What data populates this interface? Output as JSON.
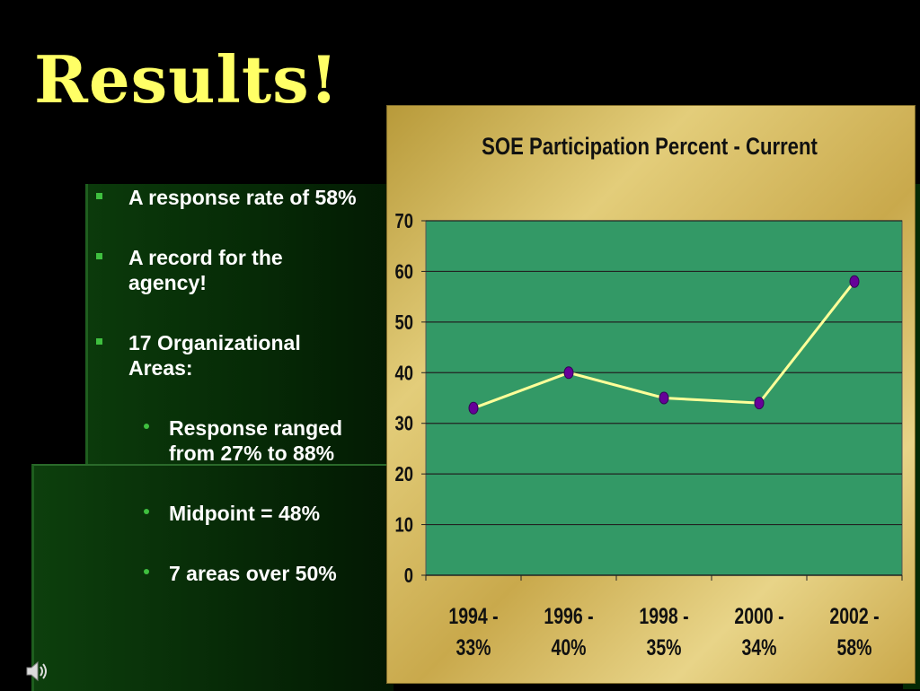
{
  "slide": {
    "title": "Results!",
    "bullets": [
      {
        "level": 1,
        "text": "A response rate of 58%"
      },
      {
        "level": 1,
        "text": "A record for the agency!"
      },
      {
        "level": 1,
        "text": "17 Organizational Areas:"
      },
      {
        "level": 2,
        "text": "Response ranged from 27% to 88%"
      },
      {
        "level": 2,
        "text": "Midpoint = 48%"
      },
      {
        "level": 2,
        "text": "7 areas over 50%"
      }
    ],
    "icons": {
      "speaker": "speaker-icon"
    },
    "colors": {
      "title": "#ffff66",
      "plot_bg": "#339966",
      "line": "#ffff99",
      "marker": "#660099",
      "bullet_marker": "#3fbf3f"
    }
  },
  "chart_data": {
    "type": "line",
    "title": "SOE Participation Percent - Current",
    "categories": [
      [
        "1994 -",
        "33%"
      ],
      [
        "1996 -",
        "40%"
      ],
      [
        "1998 -",
        "35%"
      ],
      [
        "2000 -",
        "34%"
      ],
      [
        "2002 -",
        "58%"
      ]
    ],
    "values": [
      33,
      40,
      35,
      34,
      58
    ],
    "ylim": [
      0,
      70
    ],
    "yticks": [
      0,
      10,
      20,
      30,
      40,
      50,
      60,
      70
    ],
    "grid": true,
    "legend": "none"
  }
}
